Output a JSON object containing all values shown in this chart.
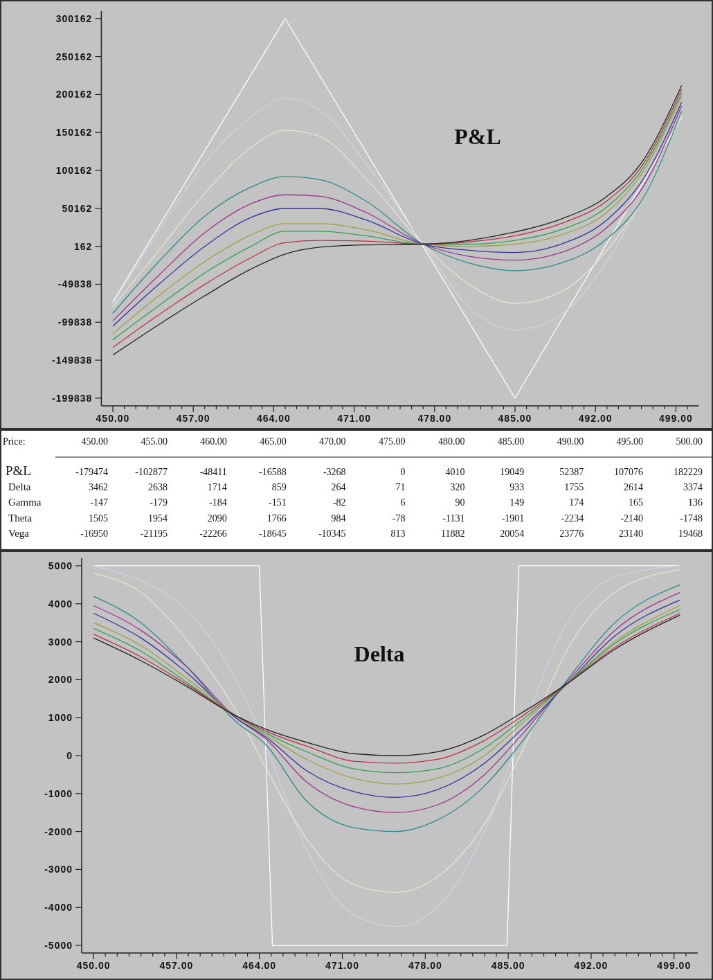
{
  "chart_data": [
    {
      "type": "line",
      "title": "P&L",
      "x": [
        450,
        454,
        458,
        462,
        465,
        468,
        472,
        477,
        481,
        485,
        489,
        493,
        496,
        499.5
      ],
      "xlim": [
        449,
        501
      ],
      "ylim": [
        -210000,
        310000
      ],
      "xticks": [
        {
          "value": 450,
          "label": "450.00"
        },
        {
          "value": 451,
          "label": null
        },
        {
          "value": 452,
          "label": null
        },
        {
          "value": 453,
          "label": null
        },
        {
          "value": 454,
          "label": null
        },
        {
          "value": 455,
          "label": null
        },
        {
          "value": 456,
          "label": null
        },
        {
          "value": 457,
          "label": "457.00"
        },
        {
          "value": 458,
          "label": null
        },
        {
          "value": 459,
          "label": null
        },
        {
          "value": 460,
          "label": null
        },
        {
          "value": 461,
          "label": null
        },
        {
          "value": 462,
          "label": null
        },
        {
          "value": 463,
          "label": null
        },
        {
          "value": 464,
          "label": "464.00"
        },
        {
          "value": 465,
          "label": null
        },
        {
          "value": 466,
          "label": null
        },
        {
          "value": 467,
          "label": null
        },
        {
          "value": 468,
          "label": null
        },
        {
          "value": 469,
          "label": null
        },
        {
          "value": 470,
          "label": null
        },
        {
          "value": 471,
          "label": "471.00"
        },
        {
          "value": 472,
          "label": null
        },
        {
          "value": 473,
          "label": null
        },
        {
          "value": 474,
          "label": null
        },
        {
          "value": 475,
          "label": null
        },
        {
          "value": 476,
          "label": null
        },
        {
          "value": 477,
          "label": null
        },
        {
          "value": 478,
          "label": "478.00"
        },
        {
          "value": 479,
          "label": null
        },
        {
          "value": 480,
          "label": null
        },
        {
          "value": 481,
          "label": null
        },
        {
          "value": 482,
          "label": null
        },
        {
          "value": 483,
          "label": null
        },
        {
          "value": 484,
          "label": null
        },
        {
          "value": 485,
          "label": "485.00"
        },
        {
          "value": 486,
          "label": null
        },
        {
          "value": 487,
          "label": null
        },
        {
          "value": 488,
          "label": null
        },
        {
          "value": 489,
          "label": null
        },
        {
          "value": 490,
          "label": null
        },
        {
          "value": 491,
          "label": null
        },
        {
          "value": 492,
          "label": "492.00"
        },
        {
          "value": 493,
          "label": null
        },
        {
          "value": 494,
          "label": null
        },
        {
          "value": 495,
          "label": null
        },
        {
          "value": 496,
          "label": null
        },
        {
          "value": 497,
          "label": null
        },
        {
          "value": 498,
          "label": null
        },
        {
          "value": 499,
          "label": "499.00"
        },
        {
          "value": 500,
          "label": null
        }
      ],
      "yticks": [
        -199838,
        -149838,
        -99838,
        -49838,
        162,
        50162,
        100162,
        150162,
        200162,
        250162,
        300162
      ],
      "series": [
        {
          "color": "#ffffff",
          "x": [
            450,
            465,
            485,
            499.5
          ],
          "values": [
            -73000,
            300000,
            -200000,
            170000
          ]
        },
        {
          "color": "#c8d6e4",
          "values": [
            -76000,
            20000,
            110000,
            170000,
            195000,
            180000,
            110000,
            3000,
            -80000,
            -110000,
            -90000,
            -20000,
            60000,
            172000
          ]
        },
        {
          "color": "#e6e6cc",
          "values": [
            -80000,
            -5000,
            70000,
            130000,
            153000,
            145000,
            90000,
            3000,
            -50000,
            -75000,
            -60000,
            -5000,
            60000,
            175000
          ]
        },
        {
          "color": "#2a8a8a",
          "values": [
            -88000,
            -20000,
            40000,
            78000,
            92000,
            88000,
            60000,
            3000,
            -22000,
            -32000,
            -22000,
            10000,
            60000,
            178000
          ]
        },
        {
          "color": "#a03090",
          "values": [
            -98000,
            -38000,
            18000,
            56000,
            68000,
            66000,
            45000,
            3000,
            -13000,
            -18000,
            -8000,
            25000,
            75000,
            185000
          ]
        },
        {
          "color": "#3030a0",
          "values": [
            -105000,
            -50000,
            0,
            38000,
            50000,
            50000,
            35000,
            3000,
            -5000,
            -8000,
            3000,
            35000,
            85000,
            190000
          ]
        },
        {
          "color": "#a0a040",
          "values": [
            -115000,
            -65000,
            -20000,
            15000,
            30000,
            30000,
            22000,
            3000,
            0,
            3000,
            15000,
            45000,
            95000,
            198000
          ]
        },
        {
          "color": "#30a050",
          "values": [
            -123000,
            -78000,
            -35000,
            0,
            20000,
            20000,
            14000,
            3000,
            3000,
            8000,
            22000,
            52000,
            100000,
            202000
          ]
        },
        {
          "color": "#c03040",
          "values": [
            -133000,
            -90000,
            -50000,
            -15000,
            5000,
            8000,
            7000,
            3000,
            6000,
            14000,
            30000,
            60000,
            105000,
            207000
          ]
        },
        {
          "color": "#202020",
          "values": [
            -143000,
            -103000,
            -65000,
            -30000,
            -10000,
            -1000,
            2000,
            3000,
            8000,
            19000,
            36000,
            66000,
            110000,
            212000
          ]
        }
      ]
    },
    {
      "type": "heatmap",
      "xlabel": "Price:",
      "data_labels": true,
      "categories": [
        "450.00",
        "455.00",
        "460.00",
        "465.00",
        "470.00",
        "475.00",
        "480.00",
        "485.00",
        "490.00",
        "495.00",
        "500.00"
      ],
      "y_categories": [
        "P&L",
        "Delta",
        "Gamma",
        "Theta",
        "Vega"
      ],
      "cells": [
        [
          -179474,
          -102877,
          -48411,
          -16588,
          -3268,
          0,
          4010,
          19049,
          52387,
          107076,
          182229
        ],
        [
          3462,
          2638,
          1714,
          859,
          264,
          71,
          320,
          933,
          1755,
          2614,
          3374
        ],
        [
          -147,
          -179,
          -184,
          -151,
          -82,
          6,
          90,
          149,
          174,
          165,
          136
        ],
        [
          1505,
          1954,
          2090,
          1766,
          984,
          -78,
          -1131,
          -1901,
          -2234,
          -2140,
          -1748
        ],
        [
          -16950,
          -21195,
          -22266,
          -18645,
          -10345,
          813,
          11882,
          20054,
          23776,
          23140,
          19468
        ]
      ]
    },
    {
      "type": "line",
      "title": "Delta",
      "x": [
        450,
        454,
        458,
        462,
        464.5,
        468,
        472,
        475.5,
        479,
        483,
        486,
        490,
        494,
        499.5
      ],
      "xlim": [
        449,
        501
      ],
      "ylim": [
        -5200,
        5200
      ],
      "xticks": [
        {
          "value": 450,
          "label": "450.00"
        },
        {
          "value": 451,
          "label": null
        },
        {
          "value": 452,
          "label": null
        },
        {
          "value": 453,
          "label": null
        },
        {
          "value": 454,
          "label": null
        },
        {
          "value": 455,
          "label": null
        },
        {
          "value": 456,
          "label": null
        },
        {
          "value": 457,
          "label": "457.00"
        },
        {
          "value": 458,
          "label": null
        },
        {
          "value": 459,
          "label": null
        },
        {
          "value": 460,
          "label": null
        },
        {
          "value": 461,
          "label": null
        },
        {
          "value": 462,
          "label": null
        },
        {
          "value": 463,
          "label": null
        },
        {
          "value": 464,
          "label": "464.00"
        },
        {
          "value": 465,
          "label": null
        },
        {
          "value": 466,
          "label": null
        },
        {
          "value": 467,
          "label": null
        },
        {
          "value": 468,
          "label": null
        },
        {
          "value": 469,
          "label": null
        },
        {
          "value": 470,
          "label": null
        },
        {
          "value": 471,
          "label": "471.00"
        },
        {
          "value": 472,
          "label": null
        },
        {
          "value": 473,
          "label": null
        },
        {
          "value": 474,
          "label": null
        },
        {
          "value": 475,
          "label": null
        },
        {
          "value": 476,
          "label": null
        },
        {
          "value": 477,
          "label": null
        },
        {
          "value": 478,
          "label": "478.00"
        },
        {
          "value": 479,
          "label": null
        },
        {
          "value": 480,
          "label": null
        },
        {
          "value": 481,
          "label": null
        },
        {
          "value": 482,
          "label": null
        },
        {
          "value": 483,
          "label": null
        },
        {
          "value": 484,
          "label": null
        },
        {
          "value": 485,
          "label": "485.00"
        },
        {
          "value": 486,
          "label": null
        },
        {
          "value": 487,
          "label": null
        },
        {
          "value": 488,
          "label": null
        },
        {
          "value": 489,
          "label": null
        },
        {
          "value": 490,
          "label": null
        },
        {
          "value": 491,
          "label": null
        },
        {
          "value": 492,
          "label": "492.00"
        },
        {
          "value": 493,
          "label": null
        },
        {
          "value": 494,
          "label": null
        },
        {
          "value": 495,
          "label": null
        },
        {
          "value": 496,
          "label": null
        },
        {
          "value": 497,
          "label": null
        },
        {
          "value": 498,
          "label": null
        },
        {
          "value": 499,
          "label": "499.00"
        },
        {
          "value": 500,
          "label": null
        }
      ],
      "yticks": [
        -5000,
        -4000,
        -3000,
        -2000,
        -1000,
        0,
        1000,
        2000,
        3000,
        4000,
        5000
      ],
      "series": [
        {
          "color": "#ffffff",
          "x": [
            450,
            464,
            465.1,
            484.9,
            485.9,
            499.5
          ],
          "values": [
            5000,
            5000,
            -5000,
            -5000,
            5000,
            5000
          ]
        },
        {
          "color": "#c8d6e4",
          "values": [
            5000,
            4600,
            3800,
            2000,
            300,
            -2500,
            -4200,
            -4500,
            -4000,
            -2000,
            500,
            3500,
            4700,
            5000
          ]
        },
        {
          "color": "#e6e6cc",
          "values": [
            4800,
            4300,
            3000,
            1200,
            -300,
            -2200,
            -3400,
            -3600,
            -3200,
            -1800,
            0,
            2800,
            4300,
            4900
          ]
        },
        {
          "color": "#2a8a8a",
          "values": [
            4200,
            3500,
            2300,
            900,
            300,
            -1200,
            -1900,
            -2000,
            -1700,
            -800,
            300,
            2000,
            3500,
            4500
          ]
        },
        {
          "color": "#a03090",
          "values": [
            3950,
            3300,
            2300,
            1000,
            450,
            -700,
            -1350,
            -1500,
            -1300,
            -500,
            500,
            1950,
            3300,
            4300
          ]
        },
        {
          "color": "#3030a0",
          "values": [
            3750,
            3100,
            2150,
            1000,
            500,
            -400,
            -950,
            -1100,
            -900,
            -200,
            650,
            1900,
            3150,
            4100
          ]
        },
        {
          "color": "#a0a040",
          "values": [
            3500,
            2900,
            2000,
            1050,
            550,
            -100,
            -600,
            -750,
            -600,
            0,
            800,
            1900,
            3000,
            3950
          ]
        },
        {
          "color": "#30a050",
          "values": [
            3350,
            2750,
            1900,
            1050,
            600,
            100,
            -350,
            -450,
            -350,
            200,
            900,
            1900,
            2950,
            3850
          ]
        },
        {
          "color": "#c03040",
          "values": [
            3200,
            2600,
            1850,
            1050,
            650,
            250,
            -150,
            -200,
            -100,
            400,
            1000,
            1900,
            2850,
            3750
          ]
        },
        {
          "color": "#202020",
          "values": [
            3100,
            2500,
            1800,
            1050,
            700,
            350,
            50,
            0,
            100,
            550,
            1100,
            1900,
            2800,
            3700
          ]
        }
      ]
    }
  ]
}
